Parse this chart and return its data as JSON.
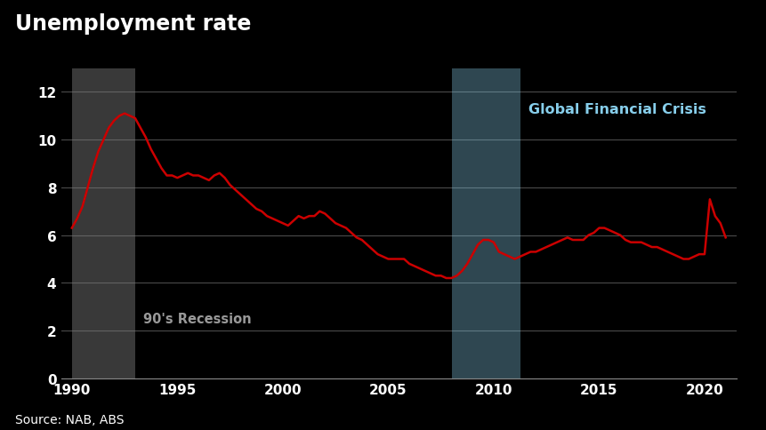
{
  "title": "Unemployment rate",
  "source": "Source: NAB, ABS",
  "background_color": "#000000",
  "plot_bg_color": "#000000",
  "line_color": "#cc0000",
  "grid_color": "#4a4a4a",
  "text_color": "#ffffff",
  "recession_color": "#808080",
  "recession_alpha": 0.45,
  "gfc_color": "#87ceeb",
  "gfc_alpha": 0.35,
  "recession_start": 1990.0,
  "recession_end": 1993.0,
  "gfc_start": 2008.0,
  "gfc_end": 2011.25,
  "recession_label": "90's Recession",
  "gfc_label": "Global Financial Crisis",
  "gfc_label_color": "#87ceeb",
  "xlim": [
    1989.5,
    2021.5
  ],
  "ylim": [
    0,
    13.0
  ],
  "yticks": [
    0,
    2,
    4,
    6,
    8,
    10,
    12
  ],
  "xticks": [
    1990,
    1995,
    2000,
    2005,
    2010,
    2015,
    2020
  ],
  "years": [
    1990.0,
    1990.25,
    1990.5,
    1990.75,
    1991.0,
    1991.25,
    1991.5,
    1991.75,
    1992.0,
    1992.25,
    1992.5,
    1992.75,
    1993.0,
    1993.25,
    1993.5,
    1993.75,
    1994.0,
    1994.25,
    1994.5,
    1994.75,
    1995.0,
    1995.25,
    1995.5,
    1995.75,
    1996.0,
    1996.25,
    1996.5,
    1996.75,
    1997.0,
    1997.25,
    1997.5,
    1997.75,
    1998.0,
    1998.25,
    1998.5,
    1998.75,
    1999.0,
    1999.25,
    1999.5,
    1999.75,
    2000.0,
    2000.25,
    2000.5,
    2000.75,
    2001.0,
    2001.25,
    2001.5,
    2001.75,
    2002.0,
    2002.25,
    2002.5,
    2002.75,
    2003.0,
    2003.25,
    2003.5,
    2003.75,
    2004.0,
    2004.25,
    2004.5,
    2004.75,
    2005.0,
    2005.25,
    2005.5,
    2005.75,
    2006.0,
    2006.25,
    2006.5,
    2006.75,
    2007.0,
    2007.25,
    2007.5,
    2007.75,
    2008.0,
    2008.25,
    2008.5,
    2008.75,
    2009.0,
    2009.25,
    2009.5,
    2009.75,
    2010.0,
    2010.25,
    2010.5,
    2010.75,
    2011.0,
    2011.25,
    2011.5,
    2011.75,
    2012.0,
    2012.25,
    2012.5,
    2012.75,
    2013.0,
    2013.25,
    2013.5,
    2013.75,
    2014.0,
    2014.25,
    2014.5,
    2014.75,
    2015.0,
    2015.25,
    2015.5,
    2015.75,
    2016.0,
    2016.25,
    2016.5,
    2016.75,
    2017.0,
    2017.25,
    2017.5,
    2017.75,
    2018.0,
    2018.25,
    2018.5,
    2018.75,
    2019.0,
    2019.25,
    2019.5,
    2019.75,
    2020.0,
    2020.25,
    2020.5,
    2020.75,
    2021.0
  ],
  "unemployment": [
    6.3,
    6.7,
    7.2,
    8.0,
    8.8,
    9.5,
    10.0,
    10.5,
    10.8,
    11.0,
    11.1,
    11.0,
    10.9,
    10.5,
    10.1,
    9.6,
    9.2,
    8.8,
    8.5,
    8.5,
    8.4,
    8.5,
    8.6,
    8.5,
    8.5,
    8.4,
    8.3,
    8.5,
    8.6,
    8.4,
    8.1,
    7.9,
    7.7,
    7.5,
    7.3,
    7.1,
    7.0,
    6.8,
    6.7,
    6.6,
    6.5,
    6.4,
    6.6,
    6.8,
    6.7,
    6.8,
    6.8,
    7.0,
    6.9,
    6.7,
    6.5,
    6.4,
    6.3,
    6.1,
    5.9,
    5.8,
    5.6,
    5.4,
    5.2,
    5.1,
    5.0,
    5.0,
    5.0,
    5.0,
    4.8,
    4.7,
    4.6,
    4.5,
    4.4,
    4.3,
    4.3,
    4.2,
    4.2,
    4.3,
    4.5,
    4.8,
    5.2,
    5.6,
    5.8,
    5.8,
    5.7,
    5.3,
    5.2,
    5.1,
    5.0,
    5.1,
    5.2,
    5.3,
    5.3,
    5.4,
    5.5,
    5.6,
    5.7,
    5.8,
    5.9,
    5.8,
    5.8,
    5.8,
    6.0,
    6.1,
    6.3,
    6.3,
    6.2,
    6.1,
    6.0,
    5.8,
    5.7,
    5.7,
    5.7,
    5.6,
    5.5,
    5.5,
    5.4,
    5.3,
    5.2,
    5.1,
    5.0,
    5.0,
    5.1,
    5.2,
    5.2,
    7.5,
    6.8,
    6.5,
    5.9
  ],
  "figsize": [
    8.62,
    4.85
  ],
  "dpi": 100
}
